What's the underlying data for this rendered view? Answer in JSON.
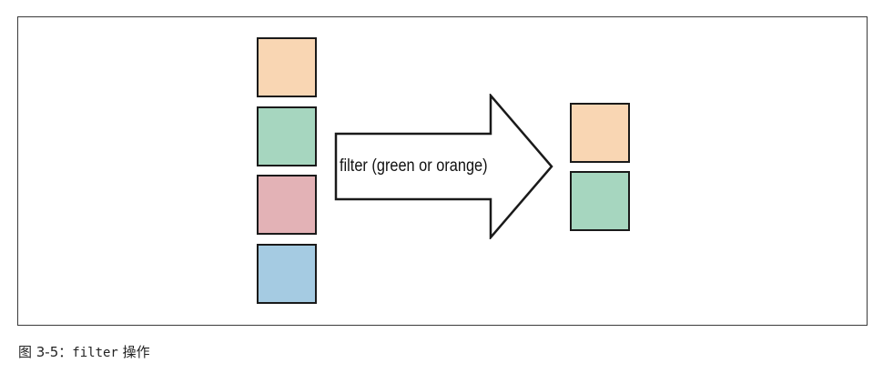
{
  "diagram": {
    "input_items": [
      {
        "name": "orange",
        "color": "#f9d6b3"
      },
      {
        "name": "green",
        "color": "#a6d6bf"
      },
      {
        "name": "red",
        "color": "#e3b2b6"
      },
      {
        "name": "blue",
        "color": "#a5cbe2"
      }
    ],
    "output_items": [
      {
        "name": "orange",
        "color": "#f9d6b3"
      },
      {
        "name": "green",
        "color": "#a6d6bf"
      }
    ],
    "arrow_label": "filter (green or orange)"
  },
  "caption": {
    "prefix": "图 3-5：",
    "code": "filter",
    "suffix": " 操作"
  }
}
